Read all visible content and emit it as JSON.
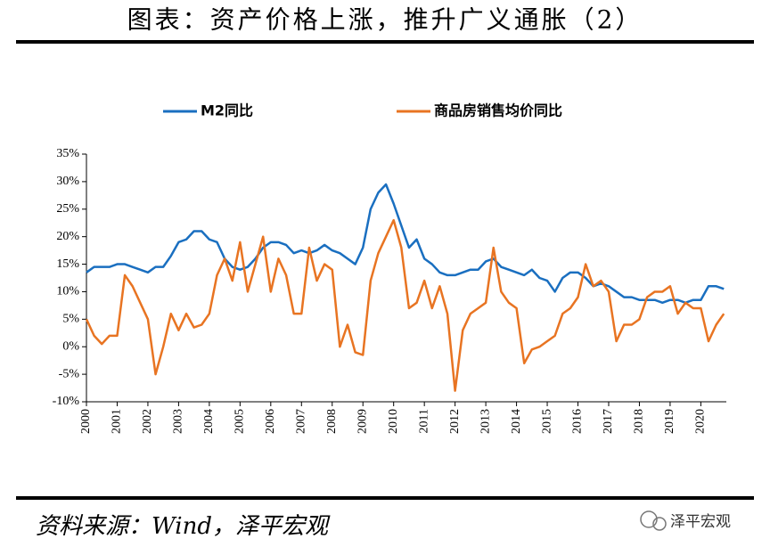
{
  "chart_data": {
    "type": "line",
    "title": "图表：资产价格上涨，推升广义通胀（2）",
    "source": "资料来源：Wind，泽平宏观",
    "watermark": "泽平宏观",
    "x": [
      2000,
      2000.25,
      2000.5,
      2000.75,
      2001,
      2001.25,
      2001.5,
      2001.75,
      2002,
      2002.25,
      2002.5,
      2002.75,
      2003,
      2003.25,
      2003.5,
      2003.75,
      2004,
      2004.25,
      2004.5,
      2004.75,
      2005,
      2005.25,
      2005.5,
      2005.75,
      2006,
      2006.25,
      2006.5,
      2006.75,
      2007,
      2007.25,
      2007.5,
      2007.75,
      2008,
      2008.25,
      2008.5,
      2008.75,
      2009,
      2009.25,
      2009.5,
      2009.75,
      2010,
      2010.25,
      2010.5,
      2010.75,
      2011,
      2011.25,
      2011.5,
      2011.75,
      2012,
      2012.25,
      2012.5,
      2012.75,
      2013,
      2013.25,
      2013.5,
      2013.75,
      2014,
      2014.25,
      2014.5,
      2014.75,
      2015,
      2015.25,
      2015.5,
      2015.75,
      2016,
      2016.25,
      2016.5,
      2016.75,
      2017,
      2017.25,
      2017.5,
      2017.75,
      2018,
      2018.25,
      2018.5,
      2018.75,
      2019,
      2019.25,
      2019.5,
      2019.75,
      2020,
      2020.25,
      2020.5,
      2020.75
    ],
    "series": [
      {
        "name": "M2同比",
        "color": "#1a6fc0",
        "values": [
          13.5,
          14.5,
          14.5,
          14.5,
          15,
          15,
          14.5,
          14,
          13.5,
          14.5,
          14.5,
          16.5,
          19,
          19.5,
          21,
          21,
          19.5,
          19,
          16,
          14.5,
          14,
          14.5,
          16,
          18,
          19,
          19,
          18.5,
          17,
          17.5,
          17,
          17.5,
          18.5,
          17.5,
          17,
          16,
          15,
          18,
          25,
          28,
          29.5,
          26,
          22,
          18,
          19.5,
          16,
          15,
          13.5,
          13,
          13,
          13.5,
          14,
          14,
          15.5,
          16,
          14.5,
          14,
          13.5,
          13,
          14,
          12.5,
          12,
          10,
          12.5,
          13.5,
          13.5,
          12.5,
          11,
          11.5,
          11,
          10,
          9,
          9,
          8.5,
          8.5,
          8.5,
          8,
          8.5,
          8.5,
          8,
          8.5,
          8.5,
          11,
          11,
          10.5
        ]
      },
      {
        "name": "商品房销售均价同比",
        "color": "#e87422",
        "values": [
          5,
          2,
          0.5,
          2,
          2,
          13,
          11,
          8,
          5,
          -5,
          0,
          6,
          3,
          6,
          3.5,
          4,
          6,
          13,
          16,
          12,
          19,
          10,
          15,
          20,
          10,
          16,
          13,
          6,
          6,
          18,
          12,
          15,
          14,
          0,
          4,
          -1,
          -1.5,
          12,
          17,
          20,
          23,
          18,
          7,
          8,
          12,
          7,
          11,
          6,
          -8,
          3,
          6,
          7,
          8,
          18,
          10,
          8,
          7,
          -3,
          -0.5,
          0,
          1,
          2,
          6,
          7,
          9,
          15,
          11,
          12,
          10,
          1,
          4,
          4,
          5,
          9,
          10,
          10,
          11,
          6,
          8,
          7,
          7,
          1,
          4,
          6
        ]
      }
    ],
    "xlim": [
      2000,
      2020.83
    ],
    "xticks": [
      2000,
      2001,
      2002,
      2003,
      2004,
      2005,
      2006,
      2007,
      2008,
      2009,
      2010,
      2011,
      2012,
      2013,
      2014,
      2015,
      2016,
      2017,
      2018,
      2019,
      2020
    ],
    "ylim": [
      -10,
      35
    ],
    "yticks": [
      {
        "value": -10,
        "label": "-10%"
      },
      {
        "value": -5,
        "label": "-5%"
      },
      {
        "value": 0,
        "label": "0%"
      },
      {
        "value": 5,
        "label": "5%"
      },
      {
        "value": 10,
        "label": "10%"
      },
      {
        "value": 15,
        "label": "15%"
      },
      {
        "value": 20,
        "label": "20%"
      },
      {
        "value": 25,
        "label": "25%"
      },
      {
        "value": 30,
        "label": "30%"
      },
      {
        "value": 35,
        "label": "35%"
      }
    ],
    "legend": "top"
  }
}
